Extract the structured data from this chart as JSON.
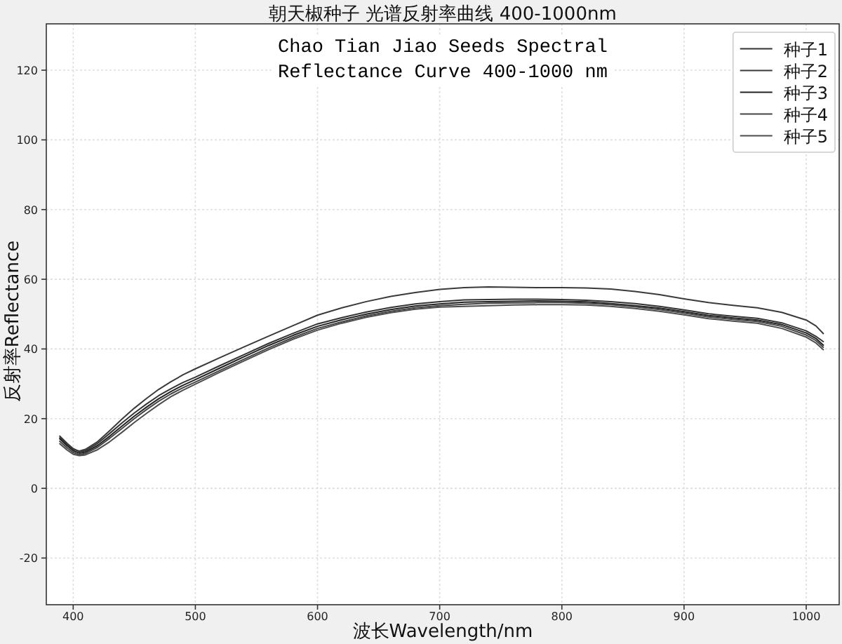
{
  "chart_data": {
    "type": "line",
    "title": "朝天椒种子 光谱反射率曲线 400-1000nm",
    "xlabel": "波长Wavelength/nm",
    "ylabel": "反射率Reflectance",
    "annotations": [
      "Chao Tian Jiao Seeds Spectral Reflectance Curve 400-1000 nm"
    ],
    "x": [
      389,
      395,
      400,
      405,
      410,
      420,
      430,
      440,
      450,
      460,
      470,
      480,
      490,
      500,
      520,
      540,
      560,
      580,
      600,
      620,
      640,
      660,
      680,
      700,
      720,
      740,
      760,
      780,
      800,
      820,
      840,
      860,
      880,
      900,
      920,
      940,
      960,
      980,
      1000,
      1008,
      1014
    ],
    "series": [
      {
        "name": "种子1",
        "color": "#333333",
        "values": [
          15.0,
          12.9,
          11.4,
          10.5,
          10.8,
          12.9,
          15.8,
          18.8,
          21.6,
          24.2,
          26.6,
          28.6,
          30.4,
          31.9,
          35.2,
          38.4,
          41.6,
          44.5,
          47.2,
          49.0,
          50.6,
          51.9,
          52.9,
          53.6,
          54.1,
          54.2,
          54.3,
          54.3,
          54.2,
          54.0,
          53.6,
          53.0,
          52.2,
          51.2,
          50.1,
          49.4,
          48.8,
          47.5,
          45.2,
          43.6,
          42.1
        ]
      },
      {
        "name": "种子2",
        "color": "#3a3a3a",
        "values": [
          14.5,
          12.6,
          11.2,
          10.7,
          11.2,
          13.4,
          16.6,
          19.9,
          23.0,
          25.8,
          28.4,
          30.6,
          32.6,
          34.3,
          37.5,
          40.6,
          43.7,
          46.7,
          49.7,
          51.8,
          53.6,
          55.1,
          56.2,
          57.1,
          57.6,
          57.8,
          57.7,
          57.6,
          57.6,
          57.5,
          57.2,
          56.5,
          55.6,
          54.4,
          53.3,
          52.5,
          51.8,
          50.5,
          48.3,
          46.6,
          44.4
        ]
      },
      {
        "name": "种子3",
        "color": "#222222",
        "values": [
          14.2,
          12.2,
          10.8,
          10.1,
          10.4,
          12.3,
          15.0,
          17.9,
          20.7,
          23.3,
          25.7,
          27.8,
          29.6,
          31.2,
          34.5,
          37.8,
          41.0,
          43.9,
          46.5,
          48.4,
          50.0,
          51.3,
          52.3,
          52.9,
          53.4,
          53.6,
          53.7,
          53.8,
          53.7,
          53.5,
          53.0,
          52.4,
          51.7,
          50.7,
          49.6,
          48.9,
          48.3,
          47.0,
          44.6,
          43.0,
          41.1
        ]
      },
      {
        "name": "种子4",
        "color": "#444444",
        "values": [
          13.5,
          11.6,
          10.3,
          9.7,
          10.0,
          11.8,
          14.4,
          17.2,
          20.0,
          22.6,
          25.0,
          27.1,
          28.9,
          30.5,
          33.8,
          37.1,
          40.3,
          43.3,
          45.9,
          47.8,
          49.5,
          50.8,
          51.8,
          52.4,
          52.8,
          53.1,
          53.2,
          53.3,
          53.3,
          53.1,
          52.7,
          52.1,
          51.3,
          50.3,
          49.2,
          48.5,
          47.9,
          46.5,
          44.0,
          42.4,
          40.5
        ]
      },
      {
        "name": "种子5",
        "color": "#4d4d4d",
        "values": [
          12.8,
          11.0,
          9.8,
          9.4,
          9.6,
          11.1,
          13.4,
          16.1,
          18.9,
          21.5,
          24.0,
          26.3,
          28.2,
          29.9,
          33.3,
          36.6,
          39.8,
          42.8,
          45.4,
          47.4,
          49.1,
          50.4,
          51.4,
          52.0,
          52.2,
          52.4,
          52.6,
          52.7,
          52.7,
          52.6,
          52.2,
          51.6,
          50.8,
          49.8,
          48.7,
          48.0,
          47.4,
          45.9,
          43.4,
          41.7,
          39.8
        ]
      }
    ],
    "xlim": [
      378,
      1027
    ],
    "ylim": [
      -33.4,
      133.3
    ],
    "xticks": [
      400,
      500,
      600,
      700,
      800,
      900,
      1000
    ],
    "yticks": [
      -20,
      0,
      20,
      40,
      60,
      80,
      100,
      120
    ],
    "grid": true,
    "legend": "top right"
  }
}
